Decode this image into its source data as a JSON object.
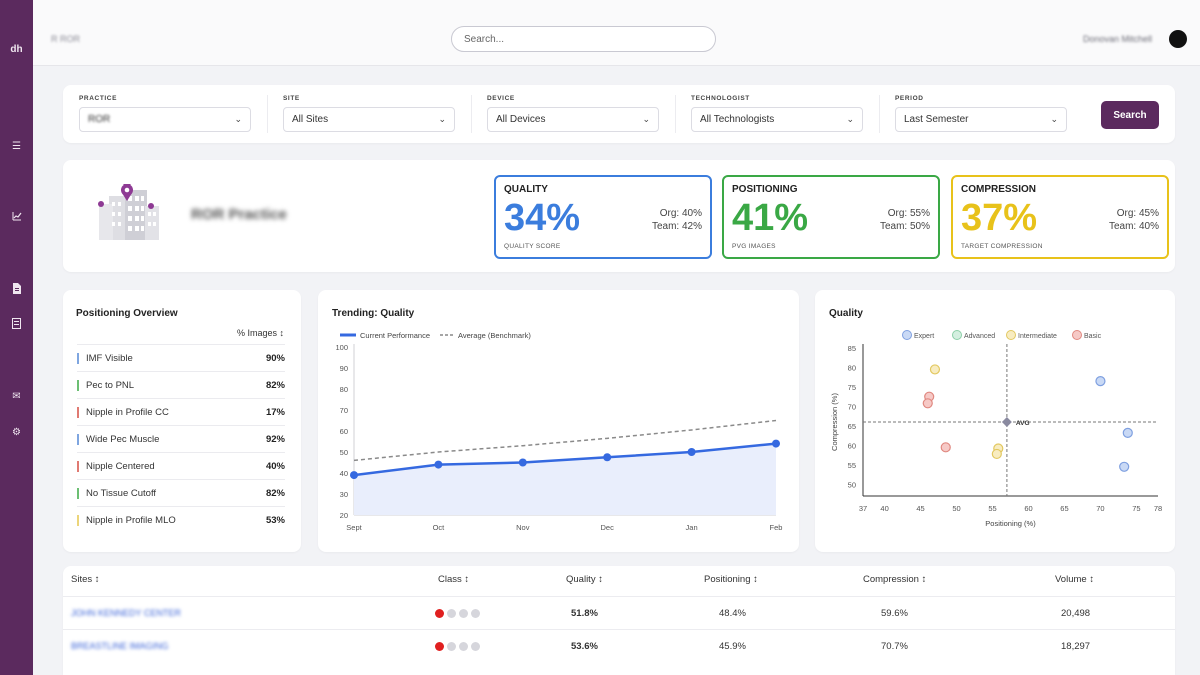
{
  "header": {
    "breadcrumb": "R ROR",
    "search_placeholder": "Search...",
    "user_name": "Donovan Mitchell"
  },
  "sidebar": {
    "logo": "dh",
    "icons": [
      "list-icon",
      "chart-icon",
      "document-icon",
      "file-icon",
      "mail-icon",
      "gear-icon"
    ]
  },
  "filters": {
    "practice": {
      "label": "PRACTICE",
      "value": "ROR"
    },
    "site": {
      "label": "SITE",
      "value": "All Sites"
    },
    "device": {
      "label": "DEVICE",
      "value": "All Devices"
    },
    "technologist": {
      "label": "TECHNOLOGIST",
      "value": "All Technologists"
    },
    "period": {
      "label": "PERIOD",
      "value": "Last Semester"
    },
    "search_button": "Search"
  },
  "practice": {
    "name": "ROR Practice"
  },
  "kpis": [
    {
      "title": "QUALITY",
      "value": "34%",
      "subtitle": "QUALITY SCORE",
      "org": "Org: 40%",
      "team": "Team: 42%",
      "color": "#3b7ddd"
    },
    {
      "title": "POSITIONING",
      "value": "41%",
      "subtitle": "PVG IMAGES",
      "org": "Org: 55%",
      "team": "Team: 50%",
      "color": "#3aa845"
    },
    {
      "title": "COMPRESSION",
      "value": "37%",
      "subtitle": "TARGET COMPRESSION",
      "org": "Org: 45%",
      "team": "Team: 40%",
      "color": "#e8c21a"
    }
  ],
  "positioning_overview": {
    "title": "Positioning Overview",
    "column": "% Images ↕",
    "rows": [
      {
        "name": "IMF Visible",
        "value": "90%",
        "color": "#7fa6e0"
      },
      {
        "name": "Pec to PNL",
        "value": "82%",
        "color": "#6cbf73"
      },
      {
        "name": "Nipple in Profile CC",
        "value": "17%",
        "color": "#e07a72"
      },
      {
        "name": "Wide Pec Muscle",
        "value": "92%",
        "color": "#7fa6e0"
      },
      {
        "name": "Nipple Centered",
        "value": "40%",
        "color": "#e07a72"
      },
      {
        "name": "No Tissue Cutoff",
        "value": "82%",
        "color": "#6cbf73"
      },
      {
        "name": "Nipple in Profile MLO",
        "value": "53%",
        "color": "#ecd57a"
      }
    ]
  },
  "trend": {
    "title": "Trending: Quality",
    "legend_current": "Current Performance",
    "legend_average": "Average (Benchmark)"
  },
  "scatter": {
    "title": "Quality",
    "avg_label": "AVG",
    "legend": [
      "Expert",
      "Advanced",
      "Intermediate",
      "Basic"
    ]
  },
  "chart_data": [
    {
      "type": "line",
      "categories": [
        "Sept",
        "Oct",
        "Nov",
        "Dec",
        "Jan",
        "Feb"
      ],
      "series": [
        {
          "name": "Current Performance",
          "values": [
            39,
            44,
            45,
            47.5,
            50,
            54
          ]
        },
        {
          "name": "Average (Benchmark)",
          "values": [
            46,
            50,
            53,
            56.5,
            60.5,
            65
          ]
        }
      ],
      "ylim": [
        20,
        100
      ],
      "yticks": [
        20,
        30,
        40,
        50,
        60,
        70,
        80,
        90,
        100
      ]
    },
    {
      "type": "scatter",
      "xlabel": "Positioning (%)",
      "ylabel": "Compression (%)",
      "xlim": [
        37,
        78
      ],
      "ylim": [
        47,
        85
      ],
      "xticks": [
        37,
        40,
        45,
        50,
        55,
        60,
        65,
        70,
        75,
        78
      ],
      "yticks": [
        50,
        55,
        60,
        65,
        70,
        75,
        80,
        85
      ],
      "avg": {
        "x": 57,
        "y": 66
      },
      "points": [
        {
          "x": 47,
          "y": 79.5,
          "class": "Intermediate"
        },
        {
          "x": 46.2,
          "y": 72.5,
          "class": "Basic"
        },
        {
          "x": 46,
          "y": 70.8,
          "class": "Basic"
        },
        {
          "x": 48.5,
          "y": 59.5,
          "class": "Basic"
        },
        {
          "x": 55.8,
          "y": 59.2,
          "class": "Intermediate"
        },
        {
          "x": 55.6,
          "y": 57.8,
          "class": "Intermediate"
        },
        {
          "x": 70,
          "y": 76.5,
          "class": "Expert"
        },
        {
          "x": 73.8,
          "y": 63.2,
          "class": "Expert"
        },
        {
          "x": 73.3,
          "y": 54.5,
          "class": "Expert"
        }
      ]
    }
  ],
  "sites_table": {
    "headers": [
      "Sites ↕",
      "Class ↕",
      "Quality ↕",
      "Positioning ↕",
      "Compression ↕",
      "Volume ↕"
    ],
    "rows": [
      {
        "site": "JOHN KENNEDY CENTER",
        "quality": "51.8%",
        "positioning": "48.4%",
        "compression": "59.6%",
        "volume": "20,498",
        "class_level": 1
      },
      {
        "site": "BREASTLINE IMAGING",
        "quality": "53.6%",
        "positioning": "45.9%",
        "compression": "70.7%",
        "volume": "18,297",
        "class_level": 1
      }
    ]
  }
}
